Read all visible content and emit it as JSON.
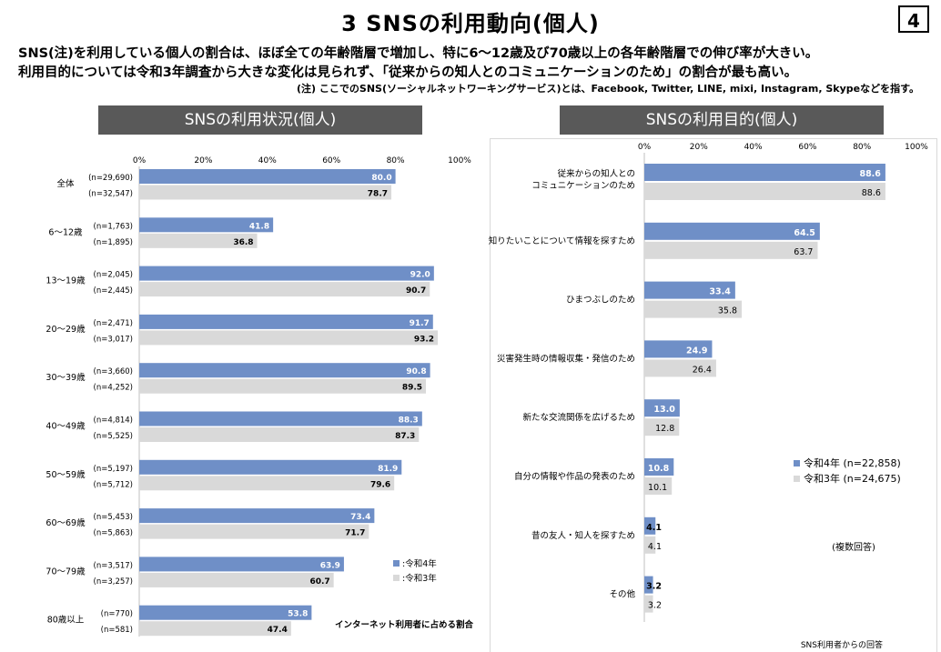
{
  "page": {
    "title": "3  SNSの利用動向(個人)",
    "page_number": "4",
    "lead_line1": "SNS(注)を利用している個人の割合は、ほぼ全ての年齢階層で増加し、特に6～12歳及び70歳以上の各年齢階層での伸び率が大きい。",
    "lead_line2": "利用目的については令和3年調査から大きな変化は見られず、「従来からの知人とのコミュニケーションのため」の割合が最も高い。",
    "note": "(注) ここでのSNS(ソーシャルネットワーキングサービス)とは、Facebook, Twitter, LINE, mixi, Instagram, Skypeなどを指す。"
  },
  "colors": {
    "r4": "#6f8fc7",
    "r3": "#d9d9d9",
    "header_bg": "#595959"
  },
  "chart_data": [
    {
      "type": "bar",
      "orientation": "horizontal",
      "title": "SNSの利用状況(個人)",
      "x_ticks": [
        "0%",
        "20%",
        "40%",
        "60%",
        "80%",
        "100%"
      ],
      "xlim": [
        0,
        100
      ],
      "categories": [
        "全体",
        "6～12歳",
        "13～19歳",
        "20～29歳",
        "30～39歳",
        "40～49歳",
        "50～59歳",
        "60～69歳",
        "70～79歳",
        "80歳以上"
      ],
      "series": [
        {
          "name": ":令和4年",
          "values": [
            80.0,
            41.8,
            92.0,
            91.7,
            90.8,
            88.3,
            81.9,
            73.4,
            63.9,
            53.8
          ],
          "labels": [
            "80.0",
            "41.8",
            "92.0",
            "91.7",
            "90.8",
            "88.3",
            "81.9",
            "73.4",
            "63.9",
            "53.8"
          ],
          "n": [
            "(n=29,690)",
            "(n=1,763)",
            "(n=2,045)",
            "(n=2,471)",
            "(n=3,660)",
            "(n=4,814)",
            "(n=5,197)",
            "(n=5,453)",
            "(n=3,517)",
            "(n=770)"
          ]
        },
        {
          "name": ":令和3年",
          "values": [
            78.7,
            36.8,
            90.7,
            93.2,
            89.5,
            87.3,
            79.6,
            71.7,
            60.7,
            47.4
          ],
          "labels": [
            "78.7",
            "36.8",
            "90.7",
            "93.2",
            "89.5",
            "87.3",
            "79.6",
            "71.7",
            "60.7",
            "47.4"
          ],
          "n": [
            "(n=32,547)",
            "(n=1,895)",
            "(n=2,445)",
            "(n=3,017)",
            "(n=4,252)",
            "(n=5,525)",
            "(n=5,712)",
            "(n=5,863)",
            "(n=3,257)",
            "(n=581)"
          ]
        }
      ],
      "legend_position": "bottom-right",
      "footnote": "インターネット利用者に占める割合"
    },
    {
      "type": "bar",
      "orientation": "horizontal",
      "title": "SNSの利用目的(個人)",
      "x_ticks": [
        "0%",
        "20%",
        "40%",
        "60%",
        "80%",
        "100%"
      ],
      "xlim": [
        0,
        100
      ],
      "categories": [
        [
          "従来からの知人との",
          "コミュニケーションのため"
        ],
        [
          "知りたいことについて情報を探すため"
        ],
        [
          "ひまつぶしのため"
        ],
        [
          "災害発生時の情報収集・発信のため"
        ],
        [
          "新たな交流関係を広げるため"
        ],
        [
          "自分の情報や作品の発表のため"
        ],
        [
          "昔の友人・知人を探すため"
        ],
        [
          "その他"
        ]
      ],
      "series": [
        {
          "name": "令和4年 (n=22,858)",
          "values": [
            88.6,
            64.5,
            33.4,
            24.9,
            13.0,
            10.8,
            4.1,
            3.2
          ],
          "labels": [
            "88.6",
            "64.5",
            "33.4",
            "24.9",
            "13.0",
            "10.8",
            "4.1",
            "3.2"
          ]
        },
        {
          "name": "令和3年 (n=24,675)",
          "values": [
            88.6,
            63.7,
            35.8,
            26.4,
            12.8,
            10.1,
            4.1,
            3.2
          ],
          "labels": [
            "88.6",
            "63.7",
            "35.8",
            "26.4",
            "12.8",
            "10.1",
            "4.1",
            "3.2"
          ]
        }
      ],
      "legend_position": "middle-right",
      "annotation": "(複数回答)",
      "footnote": "SNS利用者からの回答"
    }
  ]
}
